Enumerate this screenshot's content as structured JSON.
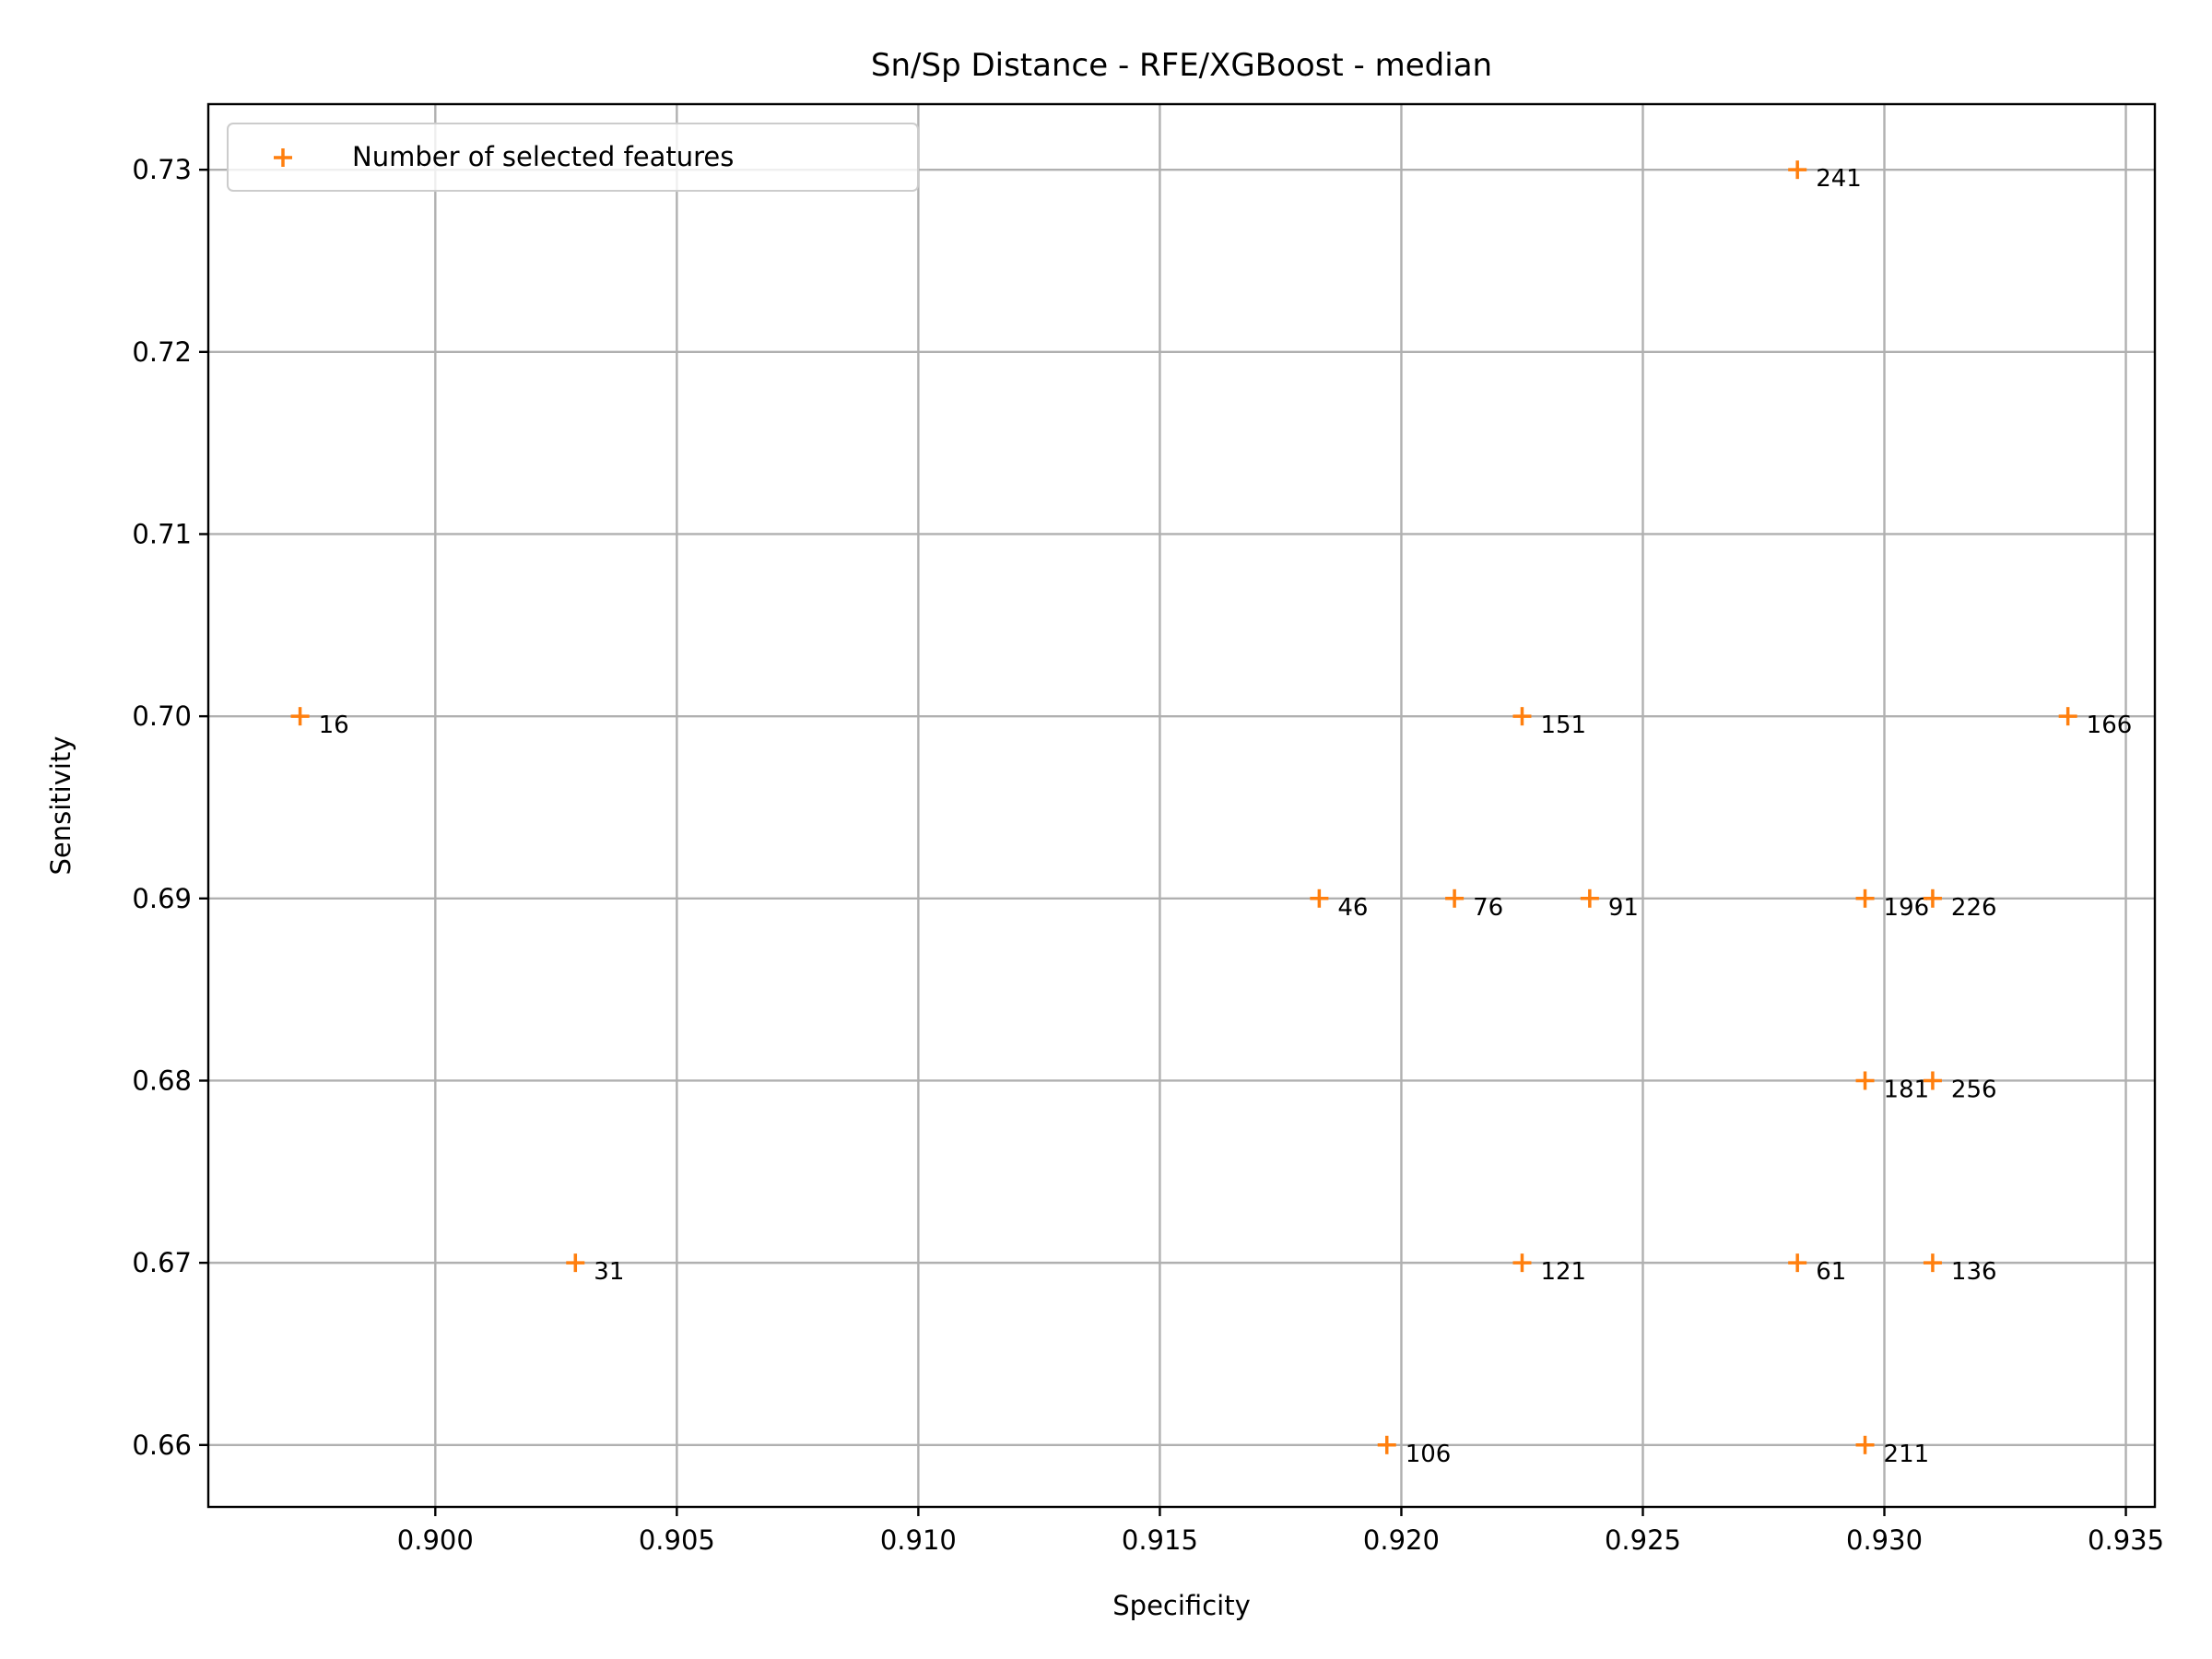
{
  "chart_data": {
    "type": "scatter",
    "title": "Sn/Sp Distance - RFE/XGBoost - median",
    "xlabel": "Specificity",
    "ylabel": "Sensitivity",
    "xlim": [
      0.8953,
      0.9356
    ],
    "ylim": [
      0.6566,
      0.7336
    ],
    "xticks": [
      "0.900",
      "0.905",
      "0.910",
      "0.915",
      "0.920",
      "0.925",
      "0.930",
      "0.935"
    ],
    "yticks": [
      "0.66",
      "0.67",
      "0.68",
      "0.69",
      "0.70",
      "0.71",
      "0.72",
      "0.73"
    ],
    "grid": true,
    "legend_position": "top-left",
    "series": [
      {
        "name": "Number of selected features",
        "color": "#ff7f0e",
        "marker": "plus",
        "points": [
          {
            "x": 0.8972,
            "y": 0.7,
            "label": "16"
          },
          {
            "x": 0.9029,
            "y": 0.67,
            "label": "31"
          },
          {
            "x": 0.9183,
            "y": 0.69,
            "label": "46"
          },
          {
            "x": 0.9282,
            "y": 0.67,
            "label": "61"
          },
          {
            "x": 0.9211,
            "y": 0.69,
            "label": "76"
          },
          {
            "x": 0.9239,
            "y": 0.69,
            "label": "91"
          },
          {
            "x": 0.9197,
            "y": 0.66,
            "label": "106"
          },
          {
            "x": 0.9225,
            "y": 0.67,
            "label": "121"
          },
          {
            "x": 0.931,
            "y": 0.67,
            "label": "136"
          },
          {
            "x": 0.9225,
            "y": 0.7,
            "label": "151"
          },
          {
            "x": 0.9338,
            "y": 0.7,
            "label": "166"
          },
          {
            "x": 0.9296,
            "y": 0.68,
            "label": "181"
          },
          {
            "x": 0.9296,
            "y": 0.69,
            "label": "196"
          },
          {
            "x": 0.9296,
            "y": 0.66,
            "label": "211"
          },
          {
            "x": 0.931,
            "y": 0.69,
            "label": "226"
          },
          {
            "x": 0.9282,
            "y": 0.73,
            "label": "241"
          },
          {
            "x": 0.931,
            "y": 0.68,
            "label": "256"
          }
        ]
      }
    ]
  }
}
